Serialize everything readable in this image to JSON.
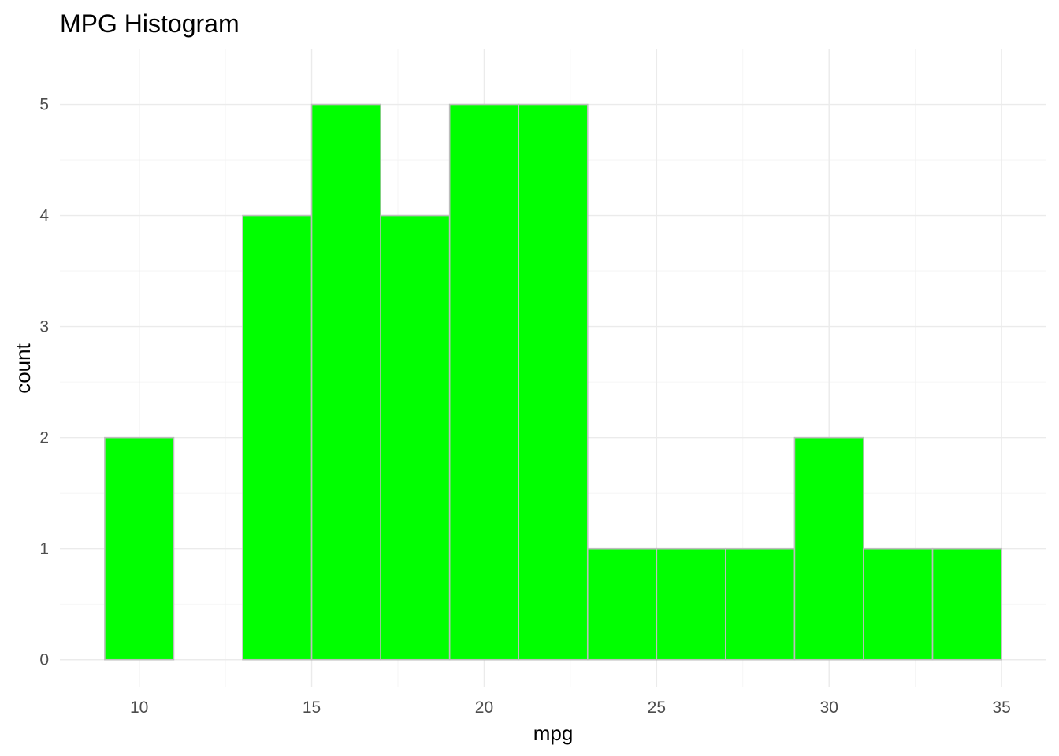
{
  "chart_data": {
    "type": "bar",
    "title": "MPG Histogram",
    "xlabel": "mpg",
    "ylabel": "count",
    "xlim": [
      7.7,
      36.3
    ],
    "ylim": [
      -0.25,
      5.5
    ],
    "x_ticks": [
      10,
      15,
      20,
      25,
      30,
      35
    ],
    "y_ticks": [
      0,
      1,
      2,
      3,
      4,
      5
    ],
    "grid": true,
    "bar_fill": "#00ff00",
    "bar_outline": "#bdbdbd",
    "bins": [
      {
        "x0": 9,
        "x1": 11,
        "count": 2
      },
      {
        "x0": 11,
        "x1": 13,
        "count": 0
      },
      {
        "x0": 13,
        "x1": 15,
        "count": 4
      },
      {
        "x0": 15,
        "x1": 17,
        "count": 5
      },
      {
        "x0": 17,
        "x1": 19,
        "count": 4
      },
      {
        "x0": 19,
        "x1": 21,
        "count": 5
      },
      {
        "x0": 21,
        "x1": 23,
        "count": 5
      },
      {
        "x0": 23,
        "x1": 25,
        "count": 1
      },
      {
        "x0": 25,
        "x1": 27,
        "count": 1
      },
      {
        "x0": 27,
        "x1": 29,
        "count": 1
      },
      {
        "x0": 29,
        "x1": 31,
        "count": 2
      },
      {
        "x0": 31,
        "x1": 33,
        "count": 1
      },
      {
        "x0": 33,
        "x1": 35,
        "count": 1
      }
    ]
  }
}
